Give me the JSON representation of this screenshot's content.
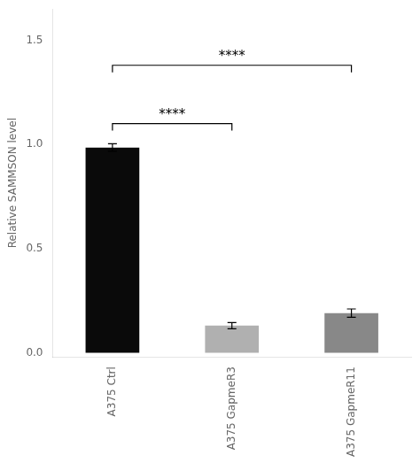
{
  "chart_data": {
    "type": "bar",
    "categories": [
      "A375 Ctrl",
      "A375 GapmeR3",
      "A375 GapmeR11"
    ],
    "values": [
      0.985,
      0.13,
      0.19
    ],
    "errors": [
      0.018,
      0.015,
      0.02
    ],
    "colors": [
      "#0a0a0a",
      "#b0b0b0",
      "#888888"
    ],
    "y_label": "Relative SAMMSON level",
    "ylim": [
      -0.02,
      1.65
    ],
    "yticks": [
      {
        "value": 0.0,
        "label": "0.0"
      },
      {
        "value": 0.5,
        "label": "0.5"
      },
      {
        "value": 1.0,
        "label": "1.0"
      },
      {
        "value": 1.5,
        "label": "1.5"
      }
    ],
    "annotations": [
      {
        "x1": "A375 Ctrl",
        "x2": "A375 GapmeR3",
        "y": 1.1,
        "label": "****"
      },
      {
        "x1": "A375 Ctrl",
        "x2": "A375 GapmeR11",
        "y": 1.38,
        "label": "****"
      }
    ],
    "grid": false
  }
}
